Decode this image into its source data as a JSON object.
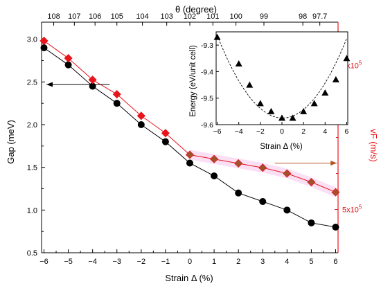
{
  "colors": {
    "gap_series": "#000000",
    "vf_series": "#e8141b",
    "vf_marker_highlight": "#a0522d",
    "highlight_band": "#f7b7e9",
    "axis": "#000000",
    "right_axis": "#e8141b"
  },
  "chart_data": [
    {
      "type": "line",
      "title": "",
      "xlabel": "Strain Δ (%)",
      "ylabel": "Gap (meV)",
      "y2label": "vF (m/s)",
      "top_xlabel": "θ (degree)",
      "xlim": [
        -6.1,
        6.1
      ],
      "ylim": [
        0.5,
        3.2
      ],
      "y2lim": [
        470000,
        630000
      ],
      "grid": false,
      "x_ticks": [
        -6,
        -5,
        -4,
        -3,
        -2,
        -1,
        0,
        1,
        2,
        3,
        4,
        5,
        6
      ],
      "x_tick_labels": [
        "−6",
        "−5",
        "−4",
        "−3",
        "−2",
        "−1",
        "0",
        "1",
        "2",
        "3",
        "4",
        "5",
        "6"
      ],
      "y_ticks": [
        0.5,
        1.0,
        1.5,
        2.0,
        2.5,
        3.0
      ],
      "y_tick_labels": [
        "0.5",
        "1.0",
        "1.5",
        "2.0",
        "2.5",
        "3.0"
      ],
      "y2_ticks": [
        500000,
        600000
      ],
      "y2_tick_labels": [
        {
          "mantissa": "5x10",
          "exp": "5"
        },
        {
          "mantissa": "6x10",
          "exp": "5"
        }
      ],
      "top_axis": {
        "positions": [
          -5.6,
          -4.75,
          -3.9,
          -3.0,
          -1.95,
          -0.95,
          0.0,
          0.95,
          1.9,
          3.05,
          4.65,
          5.35
        ],
        "labels": [
          "108",
          "107",
          "106",
          "105",
          "104",
          "103",
          "102",
          "101",
          "100",
          "99",
          "98",
          "97.7"
        ]
      },
      "series": [
        {
          "key": "gap",
          "axis": "left",
          "marker": "circle",
          "x": [
            -6,
            -5,
            -4,
            -3,
            -2,
            -1,
            0,
            1,
            2,
            3,
            4,
            5,
            6
          ],
          "y": [
            2.9,
            2.7,
            2.45,
            2.25,
            2.0,
            1.8,
            1.55,
            1.4,
            1.2,
            1.1,
            1.0,
            0.85,
            0.8
          ]
        },
        {
          "key": "vf",
          "axis": "right",
          "marker": "diamond",
          "x": [
            -6,
            -5,
            -4,
            -3,
            -2,
            -1,
            0,
            1,
            2,
            3,
            4,
            5,
            6
          ],
          "y": [
            617000,
            605000,
            590000,
            580000,
            565000,
            553000,
            538000,
            535000,
            532000,
            529000,
            525000,
            519000,
            512000
          ]
        }
      ],
      "annotations": [
        {
          "type": "arrow",
          "direction": "left",
          "points_to": "Gap axis",
          "from": [
            -3.3,
            2.47
          ],
          "to": [
            -5.9,
            2.47
          ]
        },
        {
          "type": "arrow",
          "direction": "right",
          "points_to": "vF axis",
          "from": [
            3.5,
            1.55
          ],
          "to": [
            6.05,
            1.55
          ]
        }
      ]
    },
    {
      "type": "line",
      "title": "",
      "xlabel": "Strain Δ (%)",
      "ylabel": "Energy (eV/unit cell)",
      "xlim": [
        -6.1,
        6.1
      ],
      "ylim": [
        -9.6,
        -9.25
      ],
      "grid": false,
      "x_ticks": [
        -6,
        -4,
        -2,
        0,
        2,
        4,
        6
      ],
      "x_tick_labels": [
        "−6",
        "−4",
        "−2",
        "0",
        "2",
        "4",
        "6"
      ],
      "y_ticks": [
        -9.3,
        -9.4,
        -9.5,
        -9.6
      ],
      "y_tick_labels": [
        "-9.3",
        "-9.4",
        "-9.5",
        "-9.6"
      ],
      "series": [
        {
          "key": "energy",
          "marker": "triangle",
          "x": [
            -6,
            -4,
            -3,
            -2,
            -1,
            0,
            1,
            2,
            3,
            4,
            5,
            6
          ],
          "y": [
            -9.27,
            -9.37,
            -9.45,
            -9.52,
            -9.55,
            -9.575,
            -9.575,
            -9.55,
            -9.52,
            -9.48,
            -9.43,
            -9.35
          ]
        }
      ]
    }
  ]
}
